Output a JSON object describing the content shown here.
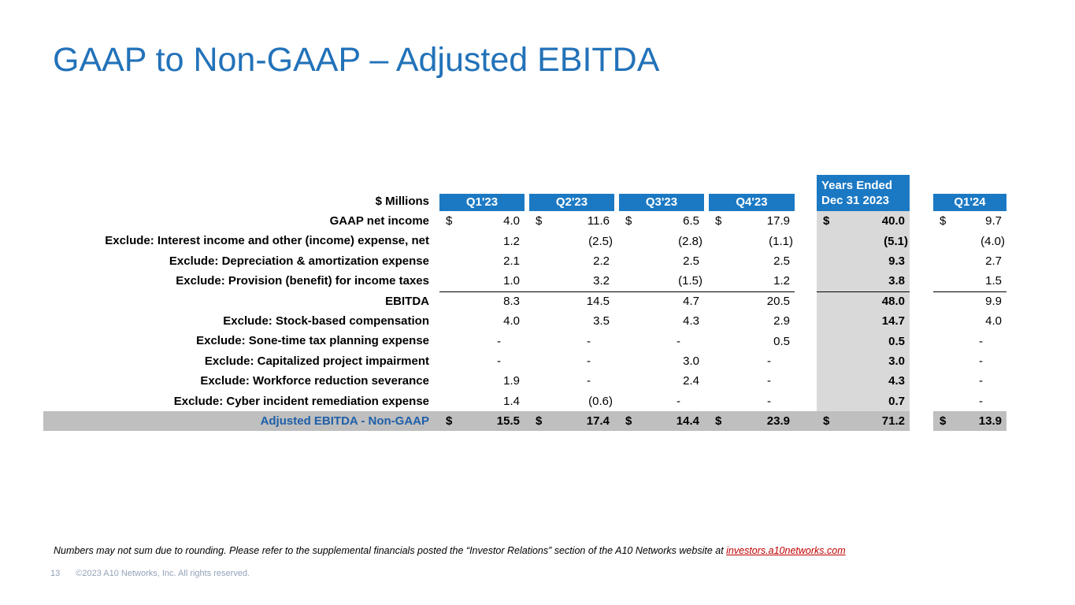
{
  "colors": {
    "title-blue": "#2272b9",
    "header-blue": "#1b79c4",
    "years-gray": "#d9d9d9",
    "total-gray": "#bfbfbf",
    "total-label-blue": "#1f5fa8",
    "link-red": "#c00000",
    "footer-gray": "#93a2b8"
  },
  "slide": {
    "title": "GAAP to Non-GAAP – Adjusted EBITDA",
    "footnote": {
      "text": "Numbers may not sum due to rounding. Please refer to the supplemental financials posted the “Investor Relations” section of the A10 Networks website at ",
      "link": "investors.a10networks.com"
    },
    "page_number": "13",
    "copyright": "©2023 A10 Networks, Inc. All rights reserved."
  },
  "table": {
    "unit_label": "$ Millions",
    "col_headers": [
      "Q1'23",
      "Q2'23",
      "Q3'23",
      "Q4'23"
    ],
    "years_header": [
      "Years Ended",
      "Dec 31 2023"
    ],
    "q124_header": "Q1'24",
    "rows": [
      {
        "label": "GAAP net income",
        "dollar": "$",
        "values": [
          "4.0",
          "11.6",
          "6.5",
          "17.9",
          "40.0",
          "9.7"
        ]
      },
      {
        "label": "Exclude:  Interest income and other (income) expense, net",
        "dollar": "",
        "values": [
          "1.2",
          "(2.5)",
          "(2.8)",
          "(1.1)",
          "(5.1)",
          "(4.0)"
        ]
      },
      {
        "label": "Exclude:  Depreciation & amortization expense",
        "dollar": "",
        "values": [
          "2.1",
          "2.2",
          "2.5",
          "2.5",
          "9.3",
          "2.7"
        ]
      },
      {
        "label": "Exclude:  Provision (benefit) for income taxes",
        "dollar": "",
        "values": [
          "1.0",
          "3.2",
          "(1.5)",
          "1.2",
          "3.8",
          "1.5"
        ]
      },
      {
        "label": "EBITDA",
        "dollar": "",
        "values": [
          "8.3",
          "14.5",
          "4.7",
          "20.5",
          "48.0",
          "9.9"
        ]
      },
      {
        "label": "Exclude:  Stock-based compensation",
        "dollar": "",
        "values": [
          "4.0",
          "3.5",
          "4.3",
          "2.9",
          "14.7",
          "4.0"
        ]
      },
      {
        "label": "Exclude:  Sone-time tax planning expense",
        "dollar": "",
        "values": [
          "-",
          "-",
          "-",
          "0.5",
          "0.5",
          "-"
        ]
      },
      {
        "label": "Exclude: Capitalized project impairment",
        "dollar": "",
        "values": [
          "-",
          "-",
          "3.0",
          "-",
          "3.0",
          "-"
        ]
      },
      {
        "label": "Exclude: Workforce reduction severance",
        "dollar": "",
        "values": [
          "1.9",
          "-",
          "2.4",
          "-",
          "4.3",
          "-"
        ]
      },
      {
        "label": "Exclude: Cyber incident remediation expense",
        "dollar": "",
        "values": [
          "1.4",
          "(0.6)",
          "-",
          "-",
          "0.7",
          "-"
        ]
      },
      {
        "label": "Adjusted EBITDA - Non-GAAP",
        "dollar": "$",
        "values": [
          "15.5",
          "17.4",
          "14.4",
          "23.9",
          "71.2",
          "13.9"
        ]
      }
    ]
  }
}
